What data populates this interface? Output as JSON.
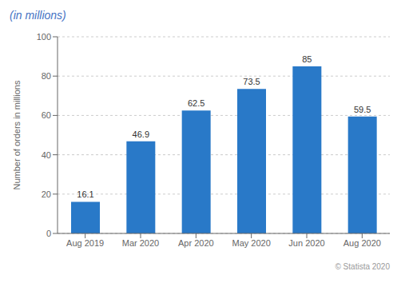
{
  "chart_data": {
    "type": "bar",
    "subtitle": "(in millions)",
    "ylabel": "Number of orders in millions",
    "categories": [
      "Aug 2019",
      "Mar 2020",
      "Apr 2020",
      "May 2020",
      "Jun 2020",
      "Aug 2020"
    ],
    "values": [
      16.1,
      46.9,
      62.5,
      73.5,
      85,
      59.5
    ],
    "color": "#2979c8",
    "ylim": [
      0,
      100
    ],
    "yticks": [
      0,
      20,
      40,
      60,
      80,
      100
    ],
    "grid": true,
    "data_labels": true,
    "annotations": [
      "© Statista 2020"
    ]
  }
}
